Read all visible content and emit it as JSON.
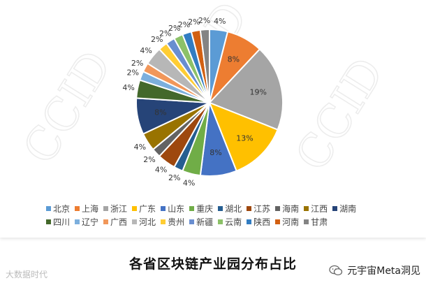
{
  "chart_data": {
    "type": "pie",
    "title": "各省区块链产业园分布占比",
    "slices": [
      {
        "name": "北京",
        "value": 4,
        "label": "4%",
        "color": "#5B9BD5"
      },
      {
        "name": "上海",
        "value": 8,
        "label": "8%",
        "color": "#ED7D31"
      },
      {
        "name": "浙江",
        "value": 19,
        "label": "19%",
        "color": "#A5A5A5"
      },
      {
        "name": "广东",
        "value": 13,
        "label": "13%",
        "color": "#FFC000"
      },
      {
        "name": "山东",
        "value": 8,
        "label": "8%",
        "color": "#4472C4"
      },
      {
        "name": "重庆",
        "value": 4,
        "label": "4%",
        "color": "#70AD47"
      },
      {
        "name": "湖北",
        "value": 2,
        "label": "2%",
        "color": "#255E91"
      },
      {
        "name": "江苏",
        "value": 4,
        "label": "4%",
        "color": "#9E480E"
      },
      {
        "name": "海南",
        "value": 2,
        "label": "2%",
        "color": "#636363"
      },
      {
        "name": "江西",
        "value": 4,
        "label": "4%",
        "color": "#997300"
      },
      {
        "name": "湖南",
        "value": 8,
        "label": "8%",
        "color": "#264478"
      },
      {
        "name": "四川",
        "value": 4,
        "label": "4%",
        "color": "#43682B"
      },
      {
        "name": "辽宁",
        "value": 2,
        "label": "2%",
        "color": "#7CAFDD"
      },
      {
        "name": "广西",
        "value": 2,
        "label": "2%",
        "color": "#F1975A"
      },
      {
        "name": "河北",
        "value": 4,
        "label": "4%",
        "color": "#B7B7B7"
      },
      {
        "name": "贵州",
        "value": 2,
        "label": "2%",
        "color": "#FFCD33"
      },
      {
        "name": "新疆",
        "value": 2,
        "label": "2%",
        "color": "#698ED0"
      },
      {
        "name": "云南",
        "value": 2,
        "label": "2%",
        "color": "#8CC168"
      },
      {
        "name": "陕西",
        "value": 2,
        "label": "2%",
        "color": "#327DC2"
      },
      {
        "name": "河南",
        "value": 2,
        "label": "2%",
        "color": "#D26012"
      },
      {
        "name": "甘肃",
        "value": 2,
        "label": "2%",
        "color": "#848484"
      }
    ],
    "legend_placement": "bottom"
  },
  "watermark": "CCID",
  "footer": {
    "left": "大数据时代",
    "right": "元宇宙Meta洞见"
  }
}
